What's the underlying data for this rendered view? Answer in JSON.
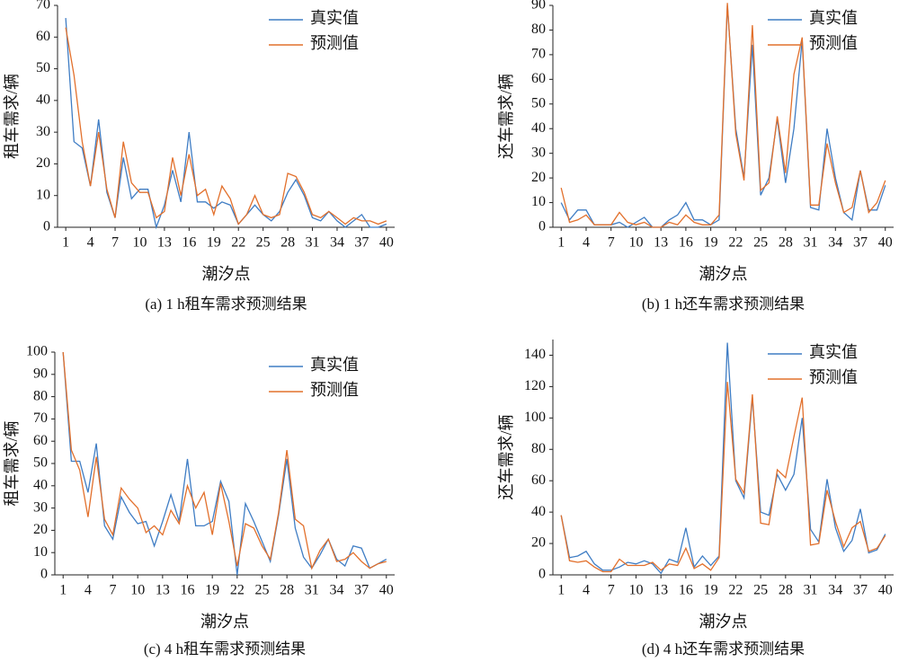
{
  "chart_data": [
    {
      "type": "line",
      "caption": "(a) 1 h租车需求预测结果",
      "xlabel": "潮汐点",
      "ylabel": "租车需求/辆",
      "legend": "upper right",
      "x": [
        1,
        2,
        3,
        4,
        5,
        6,
        7,
        8,
        9,
        10,
        11,
        12,
        13,
        14,
        15,
        16,
        17,
        18,
        19,
        20,
        21,
        22,
        23,
        24,
        25,
        26,
        27,
        28,
        29,
        30,
        31,
        32,
        33,
        34,
        35,
        36,
        37,
        38,
        39,
        40
      ],
      "xlim": [
        0,
        41
      ],
      "xticks": [
        1,
        4,
        7,
        10,
        13,
        16,
        19,
        22,
        25,
        28,
        31,
        34,
        37,
        40
      ],
      "ylim": [
        0,
        70
      ],
      "yticks": [
        0,
        10,
        20,
        30,
        40,
        50,
        60,
        70
      ],
      "series": [
        {
          "name": "真实值",
          "color": "#3f7dc4",
          "values": [
            66,
            27,
            25,
            13,
            34,
            11,
            3,
            22,
            9,
            12,
            12,
            0,
            7,
            18,
            8,
            30,
            8,
            8,
            6,
            8,
            7,
            1,
            4,
            7,
            4,
            2,
            5,
            11,
            15,
            10,
            3,
            2,
            5,
            2,
            0,
            2,
            4,
            0,
            0,
            1
          ]
        },
        {
          "name": "预测值",
          "color": "#e2702c",
          "values": [
            63,
            48,
            27,
            13,
            30,
            12,
            3,
            27,
            14,
            11,
            11,
            3,
            5,
            22,
            10,
            23,
            10,
            12,
            4,
            13,
            9,
            1,
            4,
            10,
            4,
            3,
            4,
            17,
            16,
            11,
            4,
            3,
            5,
            3,
            1,
            3,
            2,
            2,
            1,
            2
          ]
        }
      ]
    },
    {
      "type": "line",
      "caption": "(b) 1 h还车需求预测结果",
      "xlabel": "潮汐点",
      "ylabel": "还车需求/辆",
      "legend": "upper right",
      "x": [
        1,
        2,
        3,
        4,
        5,
        6,
        7,
        8,
        9,
        10,
        11,
        12,
        13,
        14,
        15,
        16,
        17,
        18,
        19,
        20,
        21,
        22,
        23,
        24,
        25,
        26,
        27,
        28,
        29,
        30,
        31,
        32,
        33,
        34,
        35,
        36,
        37,
        38,
        39,
        40
      ],
      "xlim": [
        0,
        41
      ],
      "xticks": [
        1,
        4,
        7,
        10,
        13,
        16,
        19,
        22,
        25,
        28,
        31,
        34,
        37,
        40
      ],
      "ylim": [
        0,
        90
      ],
      "yticks": [
        0,
        10,
        20,
        30,
        40,
        50,
        60,
        70,
        80,
        90
      ],
      "series": [
        {
          "name": "真实值",
          "color": "#3f7dc4",
          "values": [
            10,
            3,
            7,
            7,
            1,
            1,
            1,
            2,
            0,
            2,
            4,
            0,
            0,
            3,
            5,
            10,
            3,
            3,
            1,
            3,
            90,
            40,
            20,
            74,
            13,
            20,
            44,
            18,
            40,
            76,
            8,
            7,
            40,
            20,
            6,
            3,
            23,
            7,
            7,
            17
          ]
        },
        {
          "name": "预测值",
          "color": "#e2702c",
          "values": [
            16,
            2,
            3,
            5,
            1,
            1,
            1,
            6,
            2,
            1,
            2,
            0,
            0,
            2,
            1,
            5,
            2,
            1,
            1,
            5,
            91,
            38,
            19,
            82,
            15,
            18,
            45,
            22,
            62,
            77,
            9,
            9,
            34,
            18,
            6,
            8,
            23,
            6,
            10,
            19
          ]
        }
      ]
    },
    {
      "type": "line",
      "caption": "(c) 4 h租车需求预测结果",
      "xlabel": "潮汐点",
      "ylabel": "租车需求/辆",
      "legend": "upper right",
      "x": [
        1,
        2,
        3,
        4,
        5,
        6,
        7,
        8,
        9,
        10,
        11,
        12,
        13,
        14,
        15,
        16,
        17,
        18,
        19,
        20,
        21,
        22,
        23,
        24,
        25,
        26,
        27,
        28,
        29,
        30,
        31,
        32,
        33,
        34,
        35,
        36,
        37,
        38,
        39,
        40
      ],
      "xlim": [
        0,
        41
      ],
      "xticks": [
        1,
        4,
        7,
        10,
        13,
        16,
        19,
        22,
        25,
        28,
        31,
        34,
        37,
        40
      ],
      "ylim": [
        0,
        100
      ],
      "yticks": [
        0,
        10,
        20,
        30,
        40,
        50,
        60,
        70,
        80,
        90,
        100
      ],
      "series": [
        {
          "name": "真实值",
          "color": "#3f7dc4",
          "values": [
            100,
            51,
            51,
            37,
            59,
            22,
            16,
            35,
            28,
            23,
            24,
            13,
            24,
            36,
            24,
            52,
            22,
            22,
            24,
            42,
            33,
            0,
            32,
            24,
            15,
            6,
            27,
            52,
            21,
            8,
            3,
            9,
            16,
            7,
            4,
            13,
            12,
            3,
            5,
            7
          ]
        },
        {
          "name": "预测值",
          "color": "#e2702c",
          "values": [
            100,
            56,
            47,
            26,
            53,
            25,
            18,
            39,
            34,
            30,
            19,
            22,
            18,
            29,
            23,
            40,
            30,
            37,
            18,
            41,
            24,
            4,
            23,
            21,
            13,
            7,
            28,
            56,
            25,
            22,
            3,
            11,
            16,
            6,
            7,
            10,
            6,
            3,
            5,
            6
          ]
        }
      ]
    },
    {
      "type": "line",
      "caption": "(d) 4 h还车需求预测结果",
      "xlabel": "潮汐点",
      "ylabel": "还车需求/辆",
      "legend": "upper right",
      "x": [
        1,
        2,
        3,
        4,
        5,
        6,
        7,
        8,
        9,
        10,
        11,
        12,
        13,
        14,
        15,
        16,
        17,
        18,
        19,
        20,
        21,
        22,
        23,
        24,
        25,
        26,
        27,
        28,
        29,
        30,
        31,
        32,
        33,
        34,
        35,
        36,
        37,
        38,
        39,
        40
      ],
      "xlim": [
        0,
        41
      ],
      "xticks": [
        1,
        4,
        7,
        10,
        13,
        16,
        19,
        22,
        25,
        28,
        31,
        34,
        37,
        40
      ],
      "ylim": [
        0,
        150
      ],
      "yticks": [
        0,
        20,
        40,
        60,
        80,
        100,
        120,
        140
      ],
      "series": [
        {
          "name": "真实值",
          "color": "#3f7dc4",
          "values": [
            38,
            11,
            12,
            15,
            7,
            3,
            3,
            5,
            8,
            7,
            9,
            7,
            1,
            10,
            8,
            30,
            5,
            12,
            6,
            12,
            148,
            60,
            49,
            113,
            40,
            38,
            64,
            54,
            64,
            100,
            29,
            21,
            61,
            30,
            15,
            22,
            42,
            14,
            16,
            26
          ]
        },
        {
          "name": "预测值",
          "color": "#e2702c",
          "values": [
            38,
            9,
            8,
            9,
            5,
            2,
            2,
            10,
            6,
            6,
            6,
            8,
            3,
            7,
            6,
            17,
            4,
            7,
            3,
            11,
            123,
            61,
            52,
            115,
            33,
            32,
            67,
            62,
            88,
            113,
            19,
            20,
            54,
            34,
            18,
            30,
            34,
            15,
            17,
            25
          ]
        }
      ]
    }
  ]
}
